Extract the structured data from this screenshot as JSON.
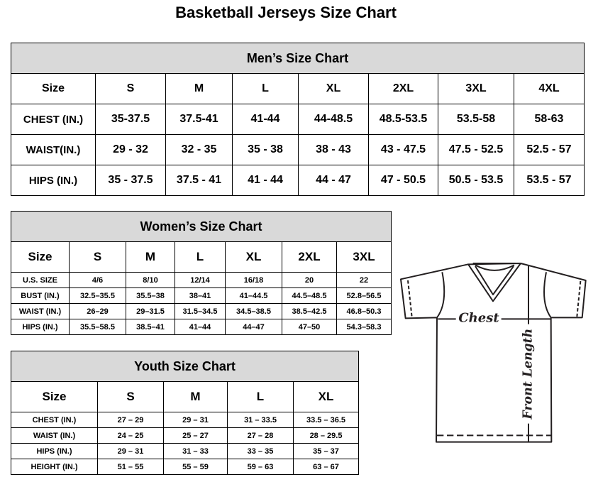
{
  "title": "Basketball Jerseys Size Chart",
  "men": {
    "title": "Men’s Size Chart",
    "header": [
      "Size",
      "S",
      "M",
      "L",
      "XL",
      "2XL",
      "3XL",
      "4XL"
    ],
    "rows": [
      [
        "CHEST (IN.)",
        "35-37.5",
        "37.5-41",
        "41-44",
        "44-48.5",
        "48.5-53.5",
        "53.5-58",
        "58-63"
      ],
      [
        "WAIST(IN.)",
        "29 - 32",
        "32 - 35",
        "35 - 38",
        "38 - 43",
        "43 - 47.5",
        "47.5 - 52.5",
        "52.5 - 57"
      ],
      [
        "HIPS (IN.)",
        "35 - 37.5",
        "37.5 - 41",
        "41 - 44",
        "44 - 47",
        "47 - 50.5",
        "50.5 - 53.5",
        "53.5 - 57"
      ]
    ]
  },
  "women": {
    "title": "Women’s Size Chart",
    "header": [
      "Size",
      "S",
      "M",
      "L",
      "XL",
      "2XL",
      "3XL"
    ],
    "rows": [
      [
        "U.S.  SIZE",
        "4/6",
        "8/10",
        "12/14",
        "16/18",
        "20",
        "22"
      ],
      [
        "BUST  (IN.)",
        "32.5–35.5",
        "35.5–38",
        "38–41",
        "41–44.5",
        "44.5–48.5",
        "52.8–56.5"
      ],
      [
        "WAIST  (IN.)",
        "26–29",
        "29–31.5",
        "31.5–34.5",
        "34.5–38.5",
        "38.5–42.5",
        "46.8–50.3"
      ],
      [
        "HIPS  (IN.)",
        "35.5–58.5",
        "38.5–41",
        "41–44",
        "44–47",
        "47–50",
        "54.3–58.3"
      ]
    ]
  },
  "youth": {
    "title": "Youth Size Chart",
    "header": [
      "Size",
      "S",
      "M",
      "L",
      "XL"
    ],
    "rows": [
      [
        "CHEST  (IN.)",
        "27  –  29",
        "29  –  31",
        "31  –  33.5",
        "33.5  –  36.5"
      ],
      [
        "WAIST  (IN.)",
        "24  –  25",
        "25  –  27",
        "27  –  28",
        "28  –  29.5"
      ],
      [
        "HIPS  (IN.)",
        "29  –  31",
        "31  –  33",
        "33  –  35",
        "35  –  37"
      ],
      [
        "HEIGHT  (IN.)",
        "51  –  55",
        "55  –  59",
        "59  –  63",
        "63  –  67"
      ]
    ]
  },
  "diagram": {
    "chest_label": "Chest",
    "length_label": "Front Length"
  },
  "colors": {
    "header_bg": "#d9d9d9",
    "line": "#231f20"
  }
}
